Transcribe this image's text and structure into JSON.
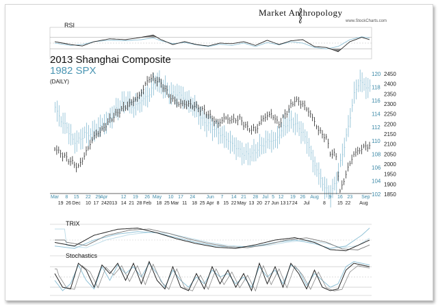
{
  "branding": {
    "name": "Market Anthropology",
    "credit": "www.StockCharts.com"
  },
  "chart_data": {
    "type": "line",
    "title": "2013 Shanghai Composite",
    "subtitle": "1982 SPX",
    "note": "(DAILY)",
    "colors": {
      "shanghai": "#222222",
      "spx": "#8fc1d6",
      "accent": "#3d8aa8"
    },
    "panels": {
      "rsi_label": "RSI",
      "trix_label": "TRIX",
      "stoch_label": "Stochastics"
    },
    "y_right_shanghai": {
      "ticks": [
        "2450",
        "2400",
        "2350",
        "2300",
        "2250",
        "2200",
        "2150",
        "2100",
        "2050",
        "2000",
        "1950",
        "1900",
        "1850"
      ],
      "range": [
        1850,
        2450
      ]
    },
    "y_right_spx": {
      "ticks": [
        "120",
        "118",
        "116",
        "114",
        "112",
        "110",
        "108",
        "106",
        "104",
        "102"
      ],
      "range": [
        102,
        120
      ]
    },
    "x_labels_spx": [
      {
        "t": "Mar",
        "i": 0
      },
      {
        "t": "8",
        "i": 6
      },
      {
        "t": "15",
        "i": 11
      },
      {
        "t": "22",
        "i": 17
      },
      {
        "t": "29",
        "i": 22
      },
      {
        "t": "Apr",
        "i": 25
      },
      {
        "t": "12",
        "i": 35
      },
      {
        "t": "19",
        "i": 41
      },
      {
        "t": "26",
        "i": 47
      },
      {
        "t": "May",
        "i": 52
      },
      {
        "t": "10",
        "i": 59
      },
      {
        "t": "17",
        "i": 64
      },
      {
        "t": "24",
        "i": 70
      },
      {
        "t": "Jun",
        "i": 79
      },
      {
        "t": "7",
        "i": 85
      },
      {
        "t": "14",
        "i": 91
      },
      {
        "t": "21",
        "i": 96
      },
      {
        "t": "28",
        "i": 102
      },
      {
        "t": "Jul",
        "i": 107
      },
      {
        "t": "5",
        "i": 111
      },
      {
        "t": "12",
        "i": 115
      },
      {
        "t": "19",
        "i": 121
      },
      {
        "t": "26",
        "i": 126
      },
      {
        "t": "Aug",
        "i": 132
      },
      {
        "t": "9",
        "i": 140
      },
      {
        "t": "16",
        "i": 145
      },
      {
        "t": "23",
        "i": 150
      },
      {
        "t": "Sep",
        "i": 158
      }
    ],
    "x_labels_shanghai": [
      {
        "t": "19",
        "i": 3
      },
      {
        "t": "26",
        "i": 7
      },
      {
        "t": "Dec",
        "i": 11
      },
      {
        "t": "10",
        "i": 17
      },
      {
        "t": "17",
        "i": 21
      },
      {
        "t": "24",
        "i": 25
      },
      {
        "t": "2013",
        "i": 29
      },
      {
        "t": "14",
        "i": 35
      },
      {
        "t": "21",
        "i": 39
      },
      {
        "t": "28",
        "i": 43
      },
      {
        "t": "Feb",
        "i": 47
      },
      {
        "t": "18",
        "i": 53
      },
      {
        "t": "25",
        "i": 57
      },
      {
        "t": "Mar",
        "i": 61
      },
      {
        "t": "11",
        "i": 66
      },
      {
        "t": "18",
        "i": 71
      },
      {
        "t": "25",
        "i": 75
      },
      {
        "t": "Apr",
        "i": 79
      },
      {
        "t": "8",
        "i": 83
      },
      {
        "t": "15",
        "i": 87
      },
      {
        "t": "22",
        "i": 91
      },
      {
        "t": "May",
        "i": 95
      },
      {
        "t": "13",
        "i": 100
      },
      {
        "t": "20",
        "i": 104
      },
      {
        "t": "27",
        "i": 108
      },
      {
        "t": "Jun",
        "i": 112
      },
      {
        "t": "13",
        "i": 116
      },
      {
        "t": "17",
        "i": 119
      },
      {
        "t": "24",
        "i": 122
      },
      {
        "t": "Jul",
        "i": 128
      },
      {
        "t": "8",
        "i": 137
      },
      {
        "t": "15",
        "i": 145
      },
      {
        "t": "22",
        "i": 149
      },
      {
        "t": "Aug",
        "i": 157
      }
    ],
    "n_points": 160,
    "series": [
      {
        "name": "Shanghai Composite 2013",
        "color": "#222222",
        "anchors": [
          [
            0,
            2080
          ],
          [
            4,
            2045
          ],
          [
            8,
            2015
          ],
          [
            12,
            1985
          ],
          [
            16,
            2060
          ],
          [
            20,
            2140
          ],
          [
            24,
            2170
          ],
          [
            28,
            2220
          ],
          [
            33,
            2265
          ],
          [
            38,
            2300
          ],
          [
            43,
            2340
          ],
          [
            48,
            2430
          ],
          [
            52,
            2420
          ],
          [
            55,
            2390
          ],
          [
            59,
            2330
          ],
          [
            63,
            2300
          ],
          [
            67,
            2300
          ],
          [
            71,
            2290
          ],
          [
            76,
            2265
          ],
          [
            80,
            2230
          ],
          [
            83,
            2200
          ],
          [
            86,
            2230
          ],
          [
            90,
            2220
          ],
          [
            94,
            2225
          ],
          [
            98,
            2180
          ],
          [
            102,
            2170
          ],
          [
            106,
            2230
          ],
          [
            110,
            2250
          ],
          [
            114,
            2200
          ],
          [
            118,
            2260
          ],
          [
            122,
            2320
          ],
          [
            126,
            2300
          ],
          [
            130,
            2250
          ],
          [
            134,
            2170
          ],
          [
            138,
            2130
          ],
          [
            140,
            2060
          ],
          [
            143,
            2040
          ],
          [
            145,
            1860
          ],
          [
            147,
            1920
          ],
          [
            149,
            1980
          ],
          [
            152,
            2050
          ],
          [
            155,
            2070
          ],
          [
            158,
            2090
          ]
        ]
      },
      {
        "name": "SPX 1982",
        "color": "#8fc1d6",
        "anchors": [
          [
            0,
            115
          ],
          [
            3,
            113
          ],
          [
            6,
            112
          ],
          [
            9,
            110
          ],
          [
            12,
            110
          ],
          [
            15,
            111
          ],
          [
            18,
            111
          ],
          [
            22,
            112
          ],
          [
            27,
            113
          ],
          [
            32,
            115
          ],
          [
            36,
            116
          ],
          [
            40,
            115
          ],
          [
            44,
            116
          ],
          [
            48,
            117
          ],
          [
            51,
            119
          ],
          [
            55,
            118
          ],
          [
            59,
            117
          ],
          [
            63,
            117
          ],
          [
            67,
            116
          ],
          [
            71,
            115
          ],
          [
            75,
            113
          ],
          [
            80,
            112
          ],
          [
            84,
            111
          ],
          [
            88,
            110
          ],
          [
            92,
            109
          ],
          [
            96,
            108
          ],
          [
            100,
            108
          ],
          [
            104,
            109
          ],
          [
            108,
            110
          ],
          [
            112,
            110
          ],
          [
            116,
            112
          ],
          [
            120,
            113
          ],
          [
            124,
            112
          ],
          [
            128,
            110
          ],
          [
            131,
            107
          ],
          [
            134,
            105
          ],
          [
            137,
            103
          ],
          [
            140,
            102
          ],
          [
            143,
            104
          ],
          [
            146,
            108
          ],
          [
            149,
            112
          ],
          [
            152,
            117
          ],
          [
            155,
            119
          ],
          [
            158,
            118
          ]
        ]
      }
    ],
    "rsi": {
      "levels": [
        70,
        30
      ],
      "shanghai_anchors": [
        [
          0,
          55
        ],
        [
          8,
          45
        ],
        [
          14,
          40
        ],
        [
          20,
          55
        ],
        [
          28,
          65
        ],
        [
          36,
          62
        ],
        [
          44,
          70
        ],
        [
          50,
          78
        ],
        [
          54,
          62
        ],
        [
          60,
          45
        ],
        [
          66,
          55
        ],
        [
          72,
          45
        ],
        [
          78,
          40
        ],
        [
          84,
          50
        ],
        [
          90,
          48
        ],
        [
          96,
          55
        ],
        [
          102,
          42
        ],
        [
          108,
          60
        ],
        [
          114,
          45
        ],
        [
          120,
          58
        ],
        [
          126,
          62
        ],
        [
          132,
          38
        ],
        [
          138,
          35
        ],
        [
          144,
          20
        ],
        [
          150,
          55
        ],
        [
          156,
          70
        ],
        [
          160,
          62
        ]
      ],
      "spx_anchors": [
        [
          0,
          50
        ],
        [
          8,
          42
        ],
        [
          14,
          45
        ],
        [
          20,
          55
        ],
        [
          28,
          60
        ],
        [
          36,
          58
        ],
        [
          44,
          62
        ],
        [
          50,
          68
        ],
        [
          54,
          58
        ],
        [
          60,
          48
        ],
        [
          66,
          52
        ],
        [
          72,
          44
        ],
        [
          78,
          38
        ],
        [
          84,
          46
        ],
        [
          90,
          42
        ],
        [
          96,
          50
        ],
        [
          102,
          38
        ],
        [
          108,
          52
        ],
        [
          114,
          44
        ],
        [
          120,
          55
        ],
        [
          126,
          50
        ],
        [
          132,
          35
        ],
        [
          138,
          30
        ],
        [
          144,
          38
        ],
        [
          150,
          62
        ],
        [
          156,
          72
        ],
        [
          160,
          68
        ]
      ]
    },
    "trix": {
      "shanghai_anchors": [
        [
          0,
          -0.2
        ],
        [
          10,
          -0.5
        ],
        [
          20,
          0.4
        ],
        [
          32,
          0.9
        ],
        [
          42,
          1.0
        ],
        [
          52,
          0.6
        ],
        [
          62,
          0.1
        ],
        [
          72,
          -0.3
        ],
        [
          82,
          -0.6
        ],
        [
          92,
          -0.7
        ],
        [
          102,
          -0.4
        ],
        [
          112,
          0.0
        ],
        [
          122,
          0.2
        ],
        [
          132,
          -0.2
        ],
        [
          140,
          -0.8
        ],
        [
          148,
          -0.9
        ],
        [
          156,
          -0.3
        ],
        [
          160,
          0.0
        ]
      ],
      "spx_anchors": [
        [
          0,
          -0.5
        ],
        [
          10,
          -0.7
        ],
        [
          20,
          0.0
        ],
        [
          32,
          0.5
        ],
        [
          42,
          0.7
        ],
        [
          52,
          0.6
        ],
        [
          62,
          0.2
        ],
        [
          72,
          -0.2
        ],
        [
          82,
          -0.5
        ],
        [
          92,
          -0.6
        ],
        [
          102,
          -0.5
        ],
        [
          112,
          -0.2
        ],
        [
          122,
          0.0
        ],
        [
          132,
          -0.3
        ],
        [
          140,
          -0.7
        ],
        [
          148,
          -0.5
        ],
        [
          156,
          0.4
        ],
        [
          160,
          1.0
        ]
      ]
    },
    "stochastics": {
      "levels": [
        80,
        20
      ],
      "shanghai_anchors": [
        [
          0,
          60
        ],
        [
          4,
          20
        ],
        [
          8,
          15
        ],
        [
          12,
          90
        ],
        [
          16,
          70
        ],
        [
          20,
          20
        ],
        [
          24,
          85
        ],
        [
          28,
          60
        ],
        [
          32,
          90
        ],
        [
          36,
          40
        ],
        [
          40,
          90
        ],
        [
          44,
          30
        ],
        [
          48,
          95
        ],
        [
          52,
          40
        ],
        [
          56,
          15
        ],
        [
          60,
          80
        ],
        [
          64,
          20
        ],
        [
          68,
          10
        ],
        [
          72,
          60
        ],
        [
          76,
          15
        ],
        [
          80,
          80
        ],
        [
          84,
          30
        ],
        [
          88,
          70
        ],
        [
          92,
          20
        ],
        [
          96,
          60
        ],
        [
          100,
          10
        ],
        [
          104,
          90
        ],
        [
          108,
          30
        ],
        [
          112,
          80
        ],
        [
          116,
          20
        ],
        [
          120,
          90
        ],
        [
          124,
          60
        ],
        [
          128,
          15
        ],
        [
          132,
          70
        ],
        [
          136,
          20
        ],
        [
          140,
          10
        ],
        [
          144,
          15
        ],
        [
          148,
          70
        ],
        [
          152,
          90
        ],
        [
          156,
          85
        ],
        [
          160,
          80
        ]
      ],
      "spx_anchors": [
        [
          0,
          40
        ],
        [
          4,
          10
        ],
        [
          8,
          30
        ],
        [
          12,
          85
        ],
        [
          16,
          40
        ],
        [
          20,
          15
        ],
        [
          24,
          80
        ],
        [
          28,
          40
        ],
        [
          32,
          85
        ],
        [
          36,
          60
        ],
        [
          40,
          80
        ],
        [
          44,
          50
        ],
        [
          48,
          90
        ],
        [
          52,
          60
        ],
        [
          56,
          20
        ],
        [
          60,
          70
        ],
        [
          64,
          40
        ],
        [
          68,
          20
        ],
        [
          72,
          50
        ],
        [
          76,
          30
        ],
        [
          80,
          70
        ],
        [
          84,
          50
        ],
        [
          88,
          60
        ],
        [
          92,
          30
        ],
        [
          96,
          50
        ],
        [
          100,
          20
        ],
        [
          104,
          80
        ],
        [
          108,
          50
        ],
        [
          112,
          70
        ],
        [
          116,
          30
        ],
        [
          120,
          85
        ],
        [
          124,
          70
        ],
        [
          128,
          25
        ],
        [
          132,
          60
        ],
        [
          136,
          40
        ],
        [
          140,
          20
        ],
        [
          144,
          30
        ],
        [
          148,
          80
        ],
        [
          152,
          95
        ],
        [
          156,
          90
        ],
        [
          160,
          85
        ]
      ]
    }
  }
}
